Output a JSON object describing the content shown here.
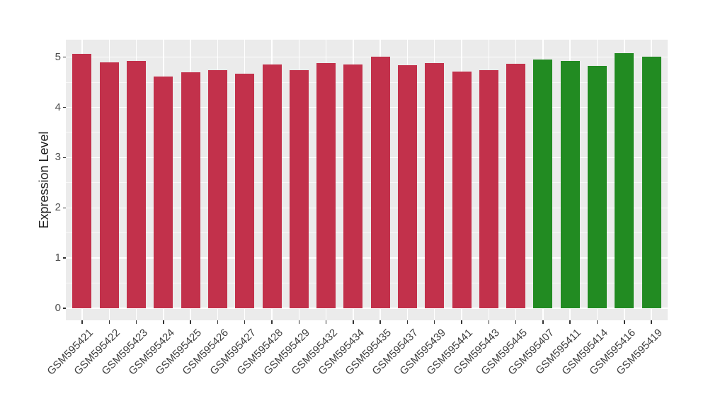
{
  "chart_data": {
    "type": "bar",
    "title": "",
    "xlabel": "",
    "ylabel": "Expression Level",
    "ylim": [
      -0.24,
      5.35
    ],
    "yticks": [
      "0",
      "1",
      "2",
      "3",
      "4",
      "5"
    ],
    "grid": "on",
    "legend": "none",
    "panel_bg": "#EBEBEB",
    "grid_color": "#FFFFFF",
    "axis_text_color": "#4D4D4D",
    "categories": [
      "GSM595421",
      "GSM595422",
      "GSM595423",
      "GSM595424",
      "GSM595425",
      "GSM595426",
      "GSM595427",
      "GSM595428",
      "GSM595429",
      "GSM595432",
      "GSM595434",
      "GSM595435",
      "GSM595437",
      "GSM595439",
      "GSM595441",
      "GSM595443",
      "GSM595445",
      "GSM595407",
      "GSM595411",
      "GSM595414",
      "GSM595416",
      "GSM595419"
    ],
    "values": [
      5.07,
      4.9,
      4.92,
      4.62,
      4.7,
      4.74,
      4.67,
      4.86,
      4.74,
      4.88,
      4.86,
      5.01,
      4.84,
      4.88,
      4.71,
      4.74,
      4.87,
      4.95,
      4.93,
      4.83,
      5.08,
      5.01
    ],
    "bar_colors": [
      "#C2314B",
      "#C2314B",
      "#C2314B",
      "#C2314B",
      "#C2314B",
      "#C2314B",
      "#C2314B",
      "#C2314B",
      "#C2314B",
      "#C2314B",
      "#C2314B",
      "#C2314B",
      "#C2314B",
      "#C2314B",
      "#C2314B",
      "#C2314B",
      "#C2314B",
      "#228B22",
      "#228B22",
      "#228B22",
      "#228B22",
      "#228B22"
    ],
    "group_colors": {
      "red": "#C2314B",
      "green": "#228B22"
    }
  }
}
